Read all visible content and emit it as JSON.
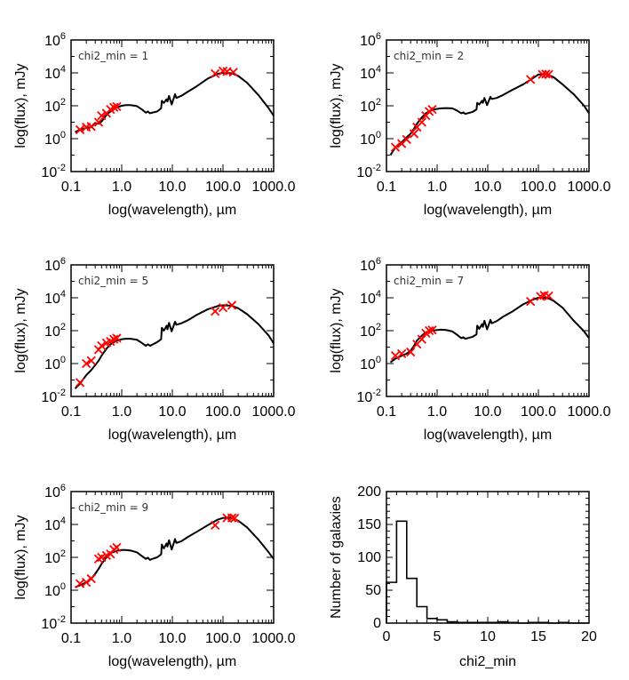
{
  "chart_data": [
    {
      "type": "line",
      "panel": "sed-1",
      "annotation": "chi2_min  =   1",
      "xlabel": "log(wavelength), µm",
      "ylabel": "log(flux),  mJy",
      "xscale": "log",
      "yscale": "log",
      "xlim": [
        0.1,
        1000.0
      ],
      "ylim": [
        0.01,
        1000000
      ],
      "xticks": [
        "0.1",
        "1.0",
        "10.0",
        "100.0",
        "1000.0"
      ],
      "yticks": [
        {
          "base": "10",
          "exp": "-2"
        },
        {
          "base": "10",
          "exp": "0"
        },
        {
          "base": "10",
          "exp": "2"
        },
        {
          "base": "10",
          "exp": "4"
        },
        {
          "base": "10",
          "exp": "6"
        }
      ],
      "series": [
        {
          "name": "model SED",
          "color": "#000000",
          "style": "line",
          "x": [
            0.12,
            0.15,
            0.2,
            0.25,
            0.3,
            0.35,
            0.4,
            0.5,
            0.6,
            0.8,
            1.0,
            1.2,
            1.5,
            2.0,
            2.5,
            3.0,
            3.3,
            3.6,
            4.0,
            5.0,
            6.0,
            6.2,
            6.8,
            7.7,
            8.0,
            8.6,
            9.7,
            11.3,
            12.0,
            15.0,
            20.0,
            30.0,
            50.0,
            80.0,
            100.0,
            150.0,
            200.0,
            300.0,
            500.0,
            800.0,
            1000.0
          ],
          "y": [
            2.5,
            3.5,
            4.5,
            5,
            9,
            8,
            11,
            28,
            45,
            80,
            100,
            110,
            110,
            95,
            60,
            38,
            45,
            35,
            38,
            45,
            70,
            200,
            150,
            250,
            180,
            400,
            120,
            500,
            300,
            400,
            700,
            1500,
            4500,
            9000,
            10000,
            9500,
            6500,
            2500,
            450,
            70,
            25
          ]
        },
        {
          "name": "observed",
          "color": "#ff0000",
          "style": "x-marker",
          "x": [
            0.15,
            0.2,
            0.25,
            0.35,
            0.4,
            0.5,
            0.6,
            0.7,
            0.8,
            70,
            100,
            120,
            160
          ],
          "y": [
            3.5,
            5,
            5.5,
            10,
            25,
            35,
            60,
            80,
            90,
            9000,
            13000,
            12000,
            11000
          ]
        }
      ]
    },
    {
      "type": "line",
      "panel": "sed-2",
      "annotation": "chi2_min  =   2",
      "xlabel": "log(wavelength), µm",
      "ylabel": "log(flux),  mJy",
      "xscale": "log",
      "yscale": "log",
      "xlim": [
        0.1,
        1000.0
      ],
      "ylim": [
        0.01,
        1000000
      ],
      "xticks": [
        "0.1",
        "1.0",
        "10.0",
        "100.0",
        "1000.0"
      ],
      "yticks": [
        {
          "base": "10",
          "exp": "-2"
        },
        {
          "base": "10",
          "exp": "0"
        },
        {
          "base": "10",
          "exp": "2"
        },
        {
          "base": "10",
          "exp": "4"
        },
        {
          "base": "10",
          "exp": "6"
        }
      ],
      "series": [
        {
          "name": "model SED",
          "color": "#000000",
          "style": "line",
          "x": [
            0.12,
            0.15,
            0.2,
            0.25,
            0.3,
            0.35,
            0.4,
            0.5,
            0.6,
            0.8,
            1.0,
            1.2,
            1.5,
            2.0,
            2.5,
            3.0,
            3.3,
            3.6,
            4.0,
            5.0,
            6.0,
            6.2,
            6.8,
            7.7,
            8.0,
            8.6,
            9.7,
            11.3,
            12.0,
            15.0,
            20.0,
            30.0,
            50.0,
            80.0,
            100.0,
            150.0,
            200.0,
            300.0,
            500.0,
            800.0,
            1000.0
          ],
          "y": [
            0.1,
            0.3,
            0.6,
            1.2,
            2,
            4,
            8,
            20,
            35,
            55,
            65,
            70,
            72,
            70,
            50,
            35,
            40,
            32,
            35,
            42,
            60,
            150,
            120,
            200,
            150,
            300,
            110,
            350,
            260,
            300,
            450,
            900,
            2000,
            5000,
            8000,
            8000,
            5500,
            2000,
            500,
            100,
            35
          ]
        },
        {
          "name": "observed",
          "color": "#ff0000",
          "style": "x-marker",
          "x": [
            0.15,
            0.2,
            0.25,
            0.35,
            0.4,
            0.5,
            0.6,
            0.7,
            0.8,
            70,
            120,
            140,
            160
          ],
          "y": [
            0.3,
            0.5,
            0.9,
            2,
            5,
            10,
            25,
            45,
            60,
            4000,
            8000,
            8500,
            8000
          ]
        }
      ]
    },
    {
      "type": "line",
      "panel": "sed-3",
      "annotation": "chi2_min  =   5",
      "xlabel": "log(wavelength), µm",
      "ylabel": "log(flux),  mJy",
      "xscale": "log",
      "yscale": "log",
      "xlim": [
        0.1,
        1000.0
      ],
      "ylim": [
        0.01,
        1000000
      ],
      "xticks": [
        "0.1",
        "1.0",
        "10.0",
        "100.0",
        "1000.0"
      ],
      "yticks": [
        {
          "base": "10",
          "exp": "-2"
        },
        {
          "base": "10",
          "exp": "0"
        },
        {
          "base": "10",
          "exp": "2"
        },
        {
          "base": "10",
          "exp": "4"
        },
        {
          "base": "10",
          "exp": "6"
        }
      ],
      "series": [
        {
          "name": "model SED",
          "color": "#000000",
          "style": "line",
          "x": [
            0.12,
            0.15,
            0.2,
            0.25,
            0.3,
            0.35,
            0.4,
            0.5,
            0.6,
            0.8,
            1.0,
            1.2,
            1.5,
            2.0,
            2.5,
            3.0,
            3.3,
            3.6,
            4.0,
            5.0,
            6.0,
            6.2,
            6.8,
            7.7,
            8.0,
            8.6,
            9.7,
            11.3,
            12.0,
            15.0,
            20.0,
            30.0,
            50.0,
            80.0,
            100.0,
            150.0,
            200.0,
            300.0,
            500.0,
            800.0,
            1000.0
          ],
          "y": [
            0.03,
            0.06,
            0.2,
            0.4,
            0.8,
            1.5,
            3,
            8,
            15,
            25,
            30,
            32,
            32,
            28,
            18,
            12,
            15,
            12,
            14,
            20,
            30,
            150,
            100,
            200,
            120,
            300,
            90,
            350,
            230,
            280,
            420,
            900,
            2000,
            3200,
            3500,
            3300,
            2300,
            1000,
            250,
            50,
            17
          ]
        },
        {
          "name": "observed",
          "color": "#ff0000",
          "style": "x-marker",
          "x": [
            0.15,
            0.2,
            0.25,
            0.35,
            0.4,
            0.5,
            0.6,
            0.7,
            0.8,
            70,
            100,
            150
          ],
          "y": [
            0.07,
            1.0,
            1.5,
            7,
            12,
            18,
            22,
            30,
            35,
            1500,
            2500,
            3500
          ]
        }
      ]
    },
    {
      "type": "line",
      "panel": "sed-4",
      "annotation": "chi2_min  =   7",
      "xlabel": "log(wavelength), µm",
      "ylabel": "log(flux),  mJy",
      "xscale": "log",
      "yscale": "log",
      "xlim": [
        0.1,
        1000.0
      ],
      "ylim": [
        0.01,
        1000000
      ],
      "xticks": [
        "0.1",
        "1.0",
        "10.0",
        "100.0",
        "1000.0"
      ],
      "yticks": [
        {
          "base": "10",
          "exp": "-2"
        },
        {
          "base": "10",
          "exp": "0"
        },
        {
          "base": "10",
          "exp": "2"
        },
        {
          "base": "10",
          "exp": "4"
        },
        {
          "base": "10",
          "exp": "6"
        }
      ],
      "series": [
        {
          "name": "model SED",
          "color": "#000000",
          "style": "line",
          "x": [
            0.12,
            0.15,
            0.2,
            0.25,
            0.3,
            0.35,
            0.4,
            0.5,
            0.6,
            0.8,
            1.0,
            1.2,
            1.5,
            2.0,
            2.5,
            3.0,
            3.3,
            3.6,
            4.0,
            5.0,
            6.0,
            6.2,
            6.8,
            7.7,
            8.0,
            8.6,
            9.7,
            11.3,
            12.0,
            15.0,
            20.0,
            30.0,
            50.0,
            80.0,
            100.0,
            150.0,
            200.0,
            300.0,
            500.0,
            800.0,
            1000.0
          ],
          "y": [
            1.2,
            2,
            3,
            4,
            6,
            12,
            25,
            50,
            80,
            100,
            110,
            115,
            110,
            90,
            55,
            35,
            40,
            32,
            35,
            42,
            60,
            200,
            130,
            250,
            170,
            400,
            120,
            450,
            280,
            380,
            700,
            1400,
            4000,
            8000,
            10000,
            10000,
            6500,
            2500,
            400,
            90,
            35
          ]
        },
        {
          "name": "observed",
          "color": "#ff0000",
          "style": "x-marker",
          "x": [
            0.15,
            0.2,
            0.3,
            0.4,
            0.5,
            0.6,
            0.7,
            0.8,
            70,
            110,
            130,
            160
          ],
          "y": [
            3,
            4,
            5,
            15,
            30,
            70,
            100,
            110,
            6000,
            12000,
            14000,
            13000
          ]
        }
      ]
    },
    {
      "type": "line",
      "panel": "sed-5",
      "annotation": "chi2_min  =   9",
      "xlabel": "log(wavelength), µm",
      "ylabel": "log(flux),  mJy",
      "xscale": "log",
      "yscale": "log",
      "xlim": [
        0.1,
        1000.0
      ],
      "ylim": [
        0.01,
        1000000
      ],
      "xticks": [
        "0.1",
        "1.0",
        "10.0",
        "100.0",
        "1000.0"
      ],
      "yticks": [
        {
          "base": "10",
          "exp": "-2"
        },
        {
          "base": "10",
          "exp": "0"
        },
        {
          "base": "10",
          "exp": "2"
        },
        {
          "base": "10",
          "exp": "4"
        },
        {
          "base": "10",
          "exp": "6"
        }
      ],
      "series": [
        {
          "name": "model SED",
          "color": "#000000",
          "style": "line",
          "x": [
            0.12,
            0.15,
            0.2,
            0.25,
            0.3,
            0.35,
            0.4,
            0.5,
            0.6,
            0.8,
            1.0,
            1.2,
            1.5,
            2.0,
            2.5,
            3.0,
            3.3,
            3.6,
            4.0,
            5.0,
            6.0,
            6.2,
            6.8,
            7.7,
            8.0,
            8.6,
            9.7,
            11.3,
            12.0,
            15.0,
            20.0,
            30.0,
            50.0,
            80.0,
            100.0,
            150.0,
            200.0,
            300.0,
            500.0,
            800.0,
            1000.0
          ],
          "y": [
            1.5,
            2,
            3,
            5,
            10,
            20,
            40,
            100,
            180,
            250,
            280,
            280,
            260,
            200,
            120,
            80,
            95,
            70,
            80,
            100,
            150,
            600,
            350,
            700,
            450,
            1100,
            300,
            1300,
            750,
            950,
            1700,
            3500,
            9000,
            20000,
            25000,
            25000,
            17000,
            6500,
            1200,
            200,
            80
          ]
        },
        {
          "name": "observed",
          "color": "#ff0000",
          "style": "x-marker",
          "x": [
            0.15,
            0.2,
            0.25,
            0.35,
            0.4,
            0.5,
            0.6,
            0.7,
            0.8,
            70,
            120,
            150,
            170
          ],
          "y": [
            2.5,
            3,
            5,
            80,
            100,
            130,
            160,
            300,
            400,
            9000,
            25000,
            25000,
            24000
          ]
        }
      ]
    },
    {
      "type": "histogram",
      "panel": "chi2-histogram",
      "xlabel": "chi2_min",
      "ylabel": "Number of galaxies",
      "xlim": [
        0,
        20
      ],
      "ylim": [
        0,
        200
      ],
      "xticks": [
        "0",
        "5",
        "10",
        "15",
        "20"
      ],
      "yticks": [
        "0",
        "50",
        "100",
        "150",
        "200"
      ],
      "bin_edges": [
        0,
        1,
        2,
        3,
        4,
        5,
        6,
        7,
        8,
        9,
        10,
        11,
        12,
        13,
        14,
        15,
        16,
        17,
        18,
        19,
        20
      ],
      "counts": [
        62,
        155,
        68,
        25,
        7,
        5,
        2,
        1,
        1,
        1,
        1,
        2,
        1,
        0,
        1,
        1,
        0,
        1,
        0,
        0
      ]
    }
  ]
}
